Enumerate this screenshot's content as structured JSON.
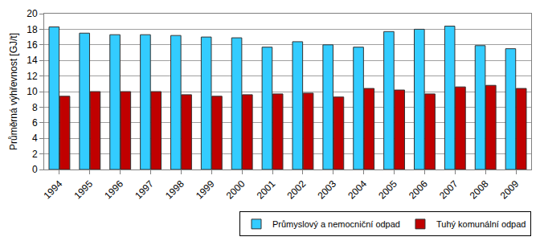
{
  "chart_data": {
    "type": "bar",
    "y_label": "Průměrná výhřevnost [GJ/t]",
    "categories": [
      "1994",
      "1995",
      "1996",
      "1997",
      "1998",
      "1999",
      "2000",
      "2001",
      "2002",
      "2003",
      "2004",
      "2005",
      "2006",
      "2007",
      "2008",
      "2009"
    ],
    "series": [
      {
        "name": "Průmyslový a nemocniční odpad",
        "color": "#33ccff",
        "values": [
          18.3,
          17.5,
          17.3,
          17.3,
          17.2,
          17.0,
          16.9,
          15.7,
          16.4,
          16.0,
          15.7,
          17.7,
          18.0,
          18.4,
          15.9,
          15.5
        ]
      },
      {
        "name": "Tuhý komunální odpad",
        "color": "#c00000",
        "values": [
          9.4,
          10.0,
          10.0,
          10.0,
          9.6,
          9.4,
          9.6,
          9.7,
          9.8,
          9.3,
          10.4,
          10.2,
          9.7,
          10.6,
          10.8,
          10.4
        ]
      }
    ],
    "ylim": [
      0,
      20
    ],
    "yticks": [
      0,
      2,
      4,
      6,
      8,
      10,
      12,
      14,
      16,
      18,
      20
    ],
    "grid": true,
    "legend": "lower right"
  }
}
